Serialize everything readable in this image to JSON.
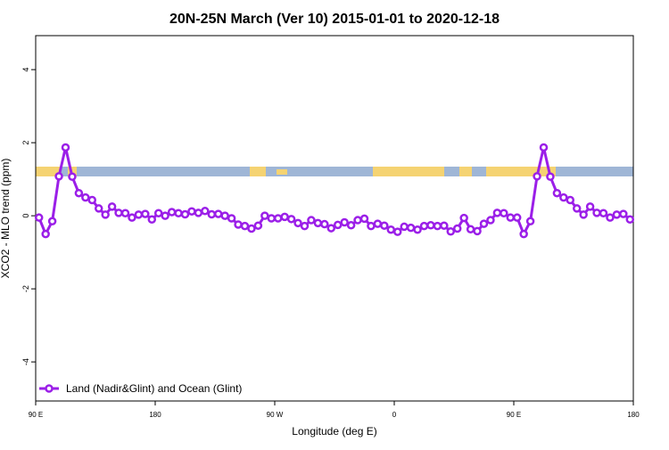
{
  "chart_data": {
    "type": "line",
    "title": "20N-25N March (Ver 10)   2015-01-01 to 2020-12-18",
    "x_label": "Longitude (deg E)",
    "y_label": "XCO2 - MLO trend (ppm)",
    "x": [
      92.5,
      97.5,
      102.5,
      107.5,
      112.5,
      117.5,
      122.5,
      127.5,
      132.5,
      137.5,
      142.5,
      147.5,
      152.5,
      157.5,
      162.5,
      167.5,
      172.5,
      177.5,
      182.5,
      187.5,
      192.5,
      197.5,
      202.5,
      207.5,
      212.5,
      217.5,
      222.5,
      227.5,
      232.5,
      237.5,
      242.5,
      247.5,
      252.5,
      257.5,
      262.5,
      267.5,
      272.5,
      277.5,
      282.5,
      287.5,
      292.5,
      297.5,
      302.5,
      307.5,
      312.5,
      317.5,
      322.5,
      327.5,
      332.5,
      337.5,
      342.5,
      347.5,
      352.5,
      357.5,
      362.5,
      367.5,
      372.5,
      377.5,
      382.5,
      387.5,
      392.5,
      397.5,
      402.5,
      407.5,
      412.5,
      417.5,
      422.5,
      427.5,
      432.5,
      437.5,
      442.5,
      447.5,
      452.5,
      457.5,
      462.5,
      467.5,
      472.5,
      477.5,
      482.5,
      487.5,
      492.5,
      497.5,
      502.5,
      507.5,
      512.5,
      517.5,
      522.5,
      527.5,
      532.5,
      537.5
    ],
    "series": [
      {
        "name": "Land (Nadir&Glint) and Ocean (Glint)",
        "color": "#9b1fe8",
        "values": [
          -0.05,
          -0.5,
          -0.15,
          1.08,
          1.87,
          1.07,
          0.62,
          0.5,
          0.43,
          0.2,
          0.03,
          0.25,
          0.08,
          0.07,
          -0.05,
          0.03,
          0.05,
          -0.1,
          0.07,
          0.0,
          0.1,
          0.07,
          0.04,
          0.12,
          0.08,
          0.13,
          0.04,
          0.05,
          0.0,
          -0.07,
          -0.24,
          -0.28,
          -0.35,
          -0.27,
          0.0,
          -0.07,
          -0.07,
          -0.03,
          -0.09,
          -0.2,
          -0.28,
          -0.12,
          -0.2,
          -0.23,
          -0.34,
          -0.25,
          -0.18,
          -0.26,
          -0.12,
          -0.08,
          -0.28,
          -0.22,
          -0.27,
          -0.38,
          -0.44,
          -0.3,
          -0.33,
          -0.38,
          -0.28,
          -0.26,
          -0.28,
          -0.27,
          -0.43,
          -0.35,
          -0.06,
          -0.37,
          -0.42,
          -0.22,
          -0.12,
          0.08,
          0.07,
          -0.05,
          -0.05,
          -0.5,
          -0.15,
          1.08,
          1.87,
          1.07,
          0.62,
          0.5,
          0.43,
          0.2,
          0.03,
          0.25,
          0.08,
          0.07,
          -0.05,
          0.03,
          0.05,
          -0.1
        ]
      }
    ],
    "xlim": [
      90,
      540
    ],
    "xticks": [
      {
        "value": 90,
        "label": "90 E"
      },
      180,
      {
        "value": 270,
        "label": "90 W"
      },
      {
        "value": 360,
        "label": "0"
      },
      {
        "value": 450,
        "label": "90 E"
      },
      {
        "value": 540,
        "label": "180"
      }
    ],
    "ylim": [
      -5.07,
      4.93
    ],
    "yticks": [
      -4,
      -2,
      0,
      2,
      4
    ],
    "legend": "bottom-left"
  }
}
